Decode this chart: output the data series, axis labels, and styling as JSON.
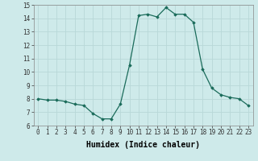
{
  "x": [
    0,
    1,
    2,
    3,
    4,
    5,
    6,
    7,
    8,
    9,
    10,
    11,
    12,
    13,
    14,
    15,
    16,
    17,
    18,
    19,
    20,
    21,
    22,
    23
  ],
  "y": [
    8.0,
    7.9,
    7.9,
    7.8,
    7.6,
    7.5,
    6.9,
    6.5,
    6.5,
    7.6,
    10.5,
    14.2,
    14.3,
    14.1,
    14.8,
    14.3,
    14.3,
    13.7,
    10.2,
    8.8,
    8.3,
    8.1,
    8.0,
    7.5
  ],
  "xlabel": "Humidex (Indice chaleur)",
  "ylim": [
    6,
    15
  ],
  "xlim": [
    -0.5,
    23.5
  ],
  "yticks": [
    6,
    7,
    8,
    9,
    10,
    11,
    12,
    13,
    14,
    15
  ],
  "xticks": [
    0,
    1,
    2,
    3,
    4,
    5,
    6,
    7,
    8,
    9,
    10,
    11,
    12,
    13,
    14,
    15,
    16,
    17,
    18,
    19,
    20,
    21,
    22,
    23
  ],
  "line_color": "#1a6b5a",
  "marker": "D",
  "marker_size": 1.8,
  "bg_color": "#ceeaea",
  "grid_color": "#b8d8d8",
  "xlabel_fontsize": 7,
  "tick_fontsize": 5.5,
  "linewidth": 0.9
}
